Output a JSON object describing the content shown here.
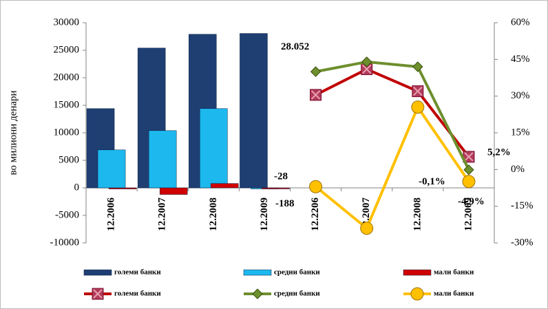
{
  "chart_data": {
    "type": "bar-line",
    "y_label": "во милиони денари",
    "categories": [
      "12.2006",
      "12.2007",
      "12.2008",
      "12.2009",
      "12.2206",
      "12.2007",
      "12.2008",
      "12.2009"
    ],
    "ylim": [
      -10000,
      30000
    ],
    "yticks": [
      -10000,
      -5000,
      0,
      5000,
      10000,
      15000,
      20000,
      25000,
      30000
    ],
    "y2lim": [
      -30,
      60
    ],
    "y2ticks": [
      {
        "value": -30,
        "label": "-30%"
      },
      {
        "value": -15,
        "label": "-15%"
      },
      {
        "value": 0,
        "label": "0%"
      },
      {
        "value": 15,
        "label": "15%"
      },
      {
        "value": 30,
        "label": "30%"
      },
      {
        "value": 45,
        "label": "45%"
      },
      {
        "value": 60,
        "label": "60%"
      }
    ],
    "grid": false,
    "legend": "bottom",
    "series": [
      {
        "name": "големи банки",
        "kind": "bar",
        "color": "#1f3f73",
        "values": [
          14400,
          25400,
          27900,
          28052,
          null,
          null,
          null,
          null
        ],
        "value_labels": [
          null,
          null,
          null,
          "28.052",
          null,
          null,
          null,
          null
        ]
      },
      {
        "name": "средни банки",
        "kind": "bar",
        "color": "#1cb8ee",
        "values": [
          6900,
          10400,
          14400,
          -28,
          null,
          null,
          null,
          null
        ],
        "value_labels": [
          null,
          null,
          null,
          "-28",
          null,
          null,
          null,
          null
        ]
      },
      {
        "name": "мали банки",
        "kind": "bar",
        "color": "#d00000",
        "values": [
          -200,
          -1200,
          800,
          -188,
          null,
          null,
          null,
          null
        ],
        "value_labels": [
          null,
          null,
          null,
          "-188",
          null,
          null,
          null,
          null
        ]
      },
      {
        "name": "големи банки",
        "kind": "line",
        "axis": "y2",
        "marker": "square",
        "color": "#c00000",
        "values": [
          null,
          null,
          null,
          null,
          30.5,
          41,
          32,
          5.2
        ],
        "value_labels": [
          null,
          null,
          null,
          null,
          null,
          null,
          null,
          "5,2%"
        ]
      },
      {
        "name": "средни банки",
        "kind": "line",
        "axis": "y2",
        "marker": "diamond",
        "color": "#6e8f2e",
        "values": [
          null,
          null,
          null,
          null,
          40,
          44,
          42,
          -0.1
        ],
        "value_labels": [
          null,
          null,
          null,
          null,
          null,
          null,
          null,
          "-0,1%"
        ]
      },
      {
        "name": "мали банки",
        "kind": "line",
        "axis": "y2",
        "marker": "circle",
        "color": "#ffc000",
        "values": [
          null,
          null,
          null,
          null,
          -7,
          -24,
          25.5,
          -4.9
        ],
        "value_labels": [
          null,
          null,
          null,
          null,
          null,
          null,
          null,
          "-4,9%"
        ]
      }
    ]
  }
}
